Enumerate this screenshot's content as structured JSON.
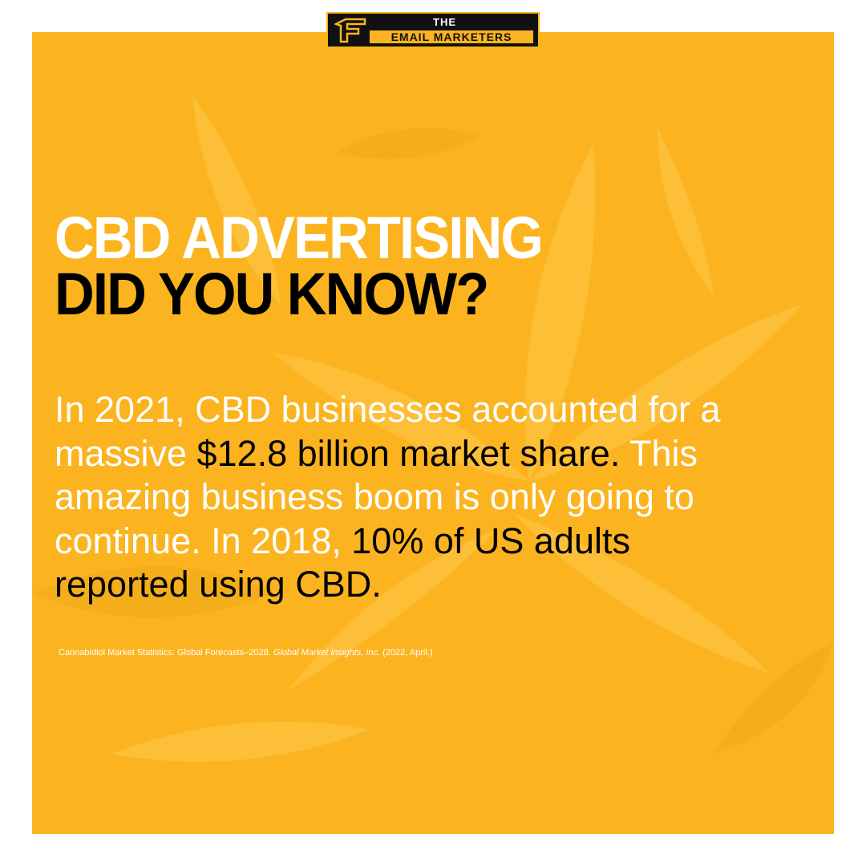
{
  "logo": {
    "line1": "THE",
    "line2": "EMAIL MARKETERS"
  },
  "headline": {
    "line1": "CBD ADVERTISING",
    "line2": "DID YOU KNOW?"
  },
  "body": {
    "lines": [
      [
        {
          "text": "In 2021, CBD businesses accounted for a",
          "highlight": false
        }
      ],
      [
        {
          "text": "massive ",
          "highlight": false
        },
        {
          "text": "$12.8 billion market share.",
          "highlight": true
        },
        {
          "text": " This",
          "highlight": false
        }
      ],
      [
        {
          "text": "amazing business boom is only going to",
          "highlight": false
        }
      ],
      [
        {
          "text": "continue. In 2018,",
          "highlight": false
        },
        {
          "text": " 10% of US adults",
          "highlight": true
        }
      ],
      [
        {
          "text": "reported using CBD.",
          "highlight": true
        }
      ]
    ]
  },
  "citation": {
    "title": "Cannabidiol Market Statistics: Global Forecasts–2028.",
    "source": "Global Market Insights, Inc.",
    "date": "(2022, April.)"
  }
}
